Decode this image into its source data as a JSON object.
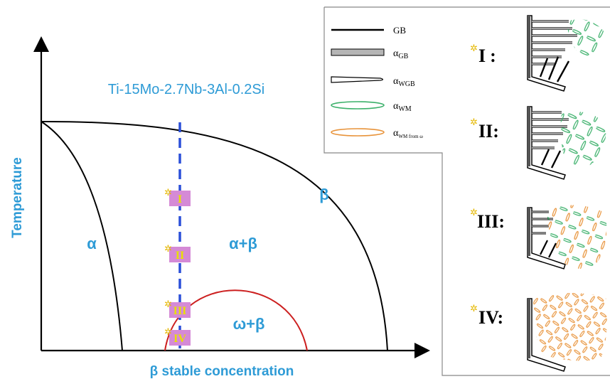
{
  "diagram": {
    "alloy_label": "Ti-15Mo-2.7Nb-3Al-0.2Si",
    "y_axis_label": "Temperature",
    "x_axis_label": "β stable concentration",
    "regions": {
      "alpha": "α",
      "alpha_beta": "α+β",
      "beta": "β",
      "omega_beta": "ω+β"
    },
    "markers": [
      "I",
      "II",
      "III",
      "IV"
    ],
    "colors": {
      "label_blue": "#2e9bd6",
      "dashed_line": "#2a4fd8",
      "marker_fill": "#d58ad6",
      "omega_curve": "#cc1f1f",
      "alpha_wm_green": "#3bb06a",
      "alpha_wm_orange": "#e8933a",
      "star": "#e5b800"
    }
  },
  "legend": {
    "items": [
      {
        "label": "GB",
        "symbol": "line"
      },
      {
        "label": "α",
        "sub": "GB",
        "symbol": "gray-bar"
      },
      {
        "label": "α",
        "sub": "WGB",
        "symbol": "needle"
      },
      {
        "label": "α",
        "sub": "WM",
        "symbol": "green-ellipse"
      },
      {
        "label": "α",
        "sub": "WM from ω",
        "symbol": "orange-ellipse"
      }
    ]
  },
  "stages": [
    {
      "numeral": "I",
      "suffix": ":"
    },
    {
      "numeral": "II",
      "suffix": ":"
    },
    {
      "numeral": "III",
      "suffix": ":"
    },
    {
      "numeral": "IV",
      "suffix": ":"
    }
  ]
}
